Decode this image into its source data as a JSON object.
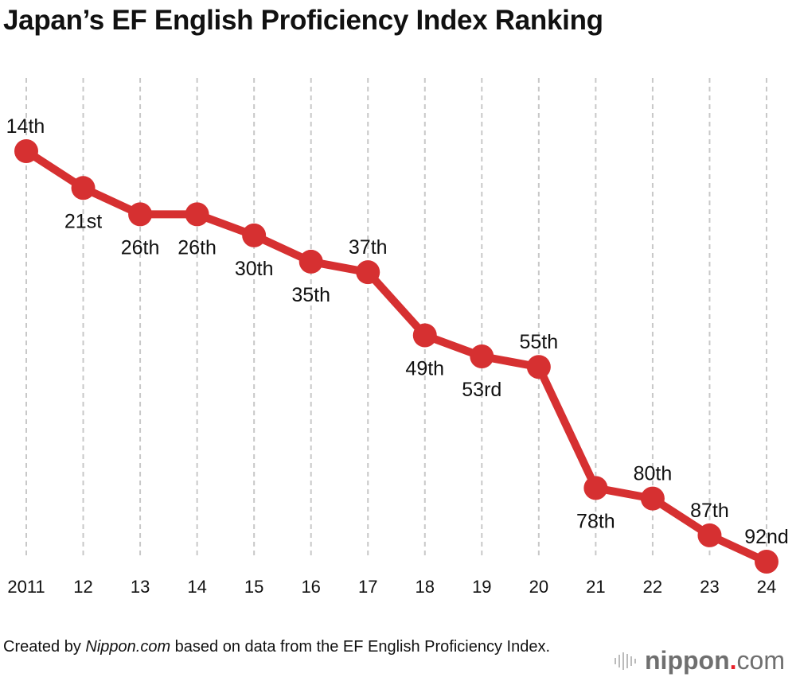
{
  "chart_data": {
    "type": "line",
    "title": "Japan’s EF English Proficiency Index Ranking",
    "categories": [
      "2011",
      "12",
      "13",
      "14",
      "15",
      "16",
      "17",
      "18",
      "19",
      "20",
      "21",
      "22",
      "23",
      "24"
    ],
    "values": [
      14,
      21,
      26,
      26,
      30,
      35,
      37,
      49,
      53,
      55,
      78,
      80,
      87,
      92
    ],
    "data_labels": [
      "14th",
      "21st",
      "26th",
      "26th",
      "30th",
      "35th",
      "37th",
      "49th",
      "53rd",
      "55th",
      "78th",
      "80th",
      "87th",
      "92nd"
    ],
    "label_positions": [
      "above",
      "below",
      "below",
      "below",
      "below",
      "below",
      "above",
      "below",
      "below",
      "above",
      "below",
      "above",
      "above",
      "above"
    ],
    "y_axis": {
      "inverted": true,
      "range": [
        14,
        92
      ],
      "shown": false
    },
    "grid": {
      "vertical": true,
      "style": "dashed"
    },
    "color": "#d63031"
  },
  "footnote": {
    "prefix": "Created by ",
    "source_name": "Nippon.com",
    "suffix": " based on data from the EF English Proficiency Index."
  },
  "logo": {
    "text": "nippon",
    "dot": ".",
    "tld": "com"
  }
}
